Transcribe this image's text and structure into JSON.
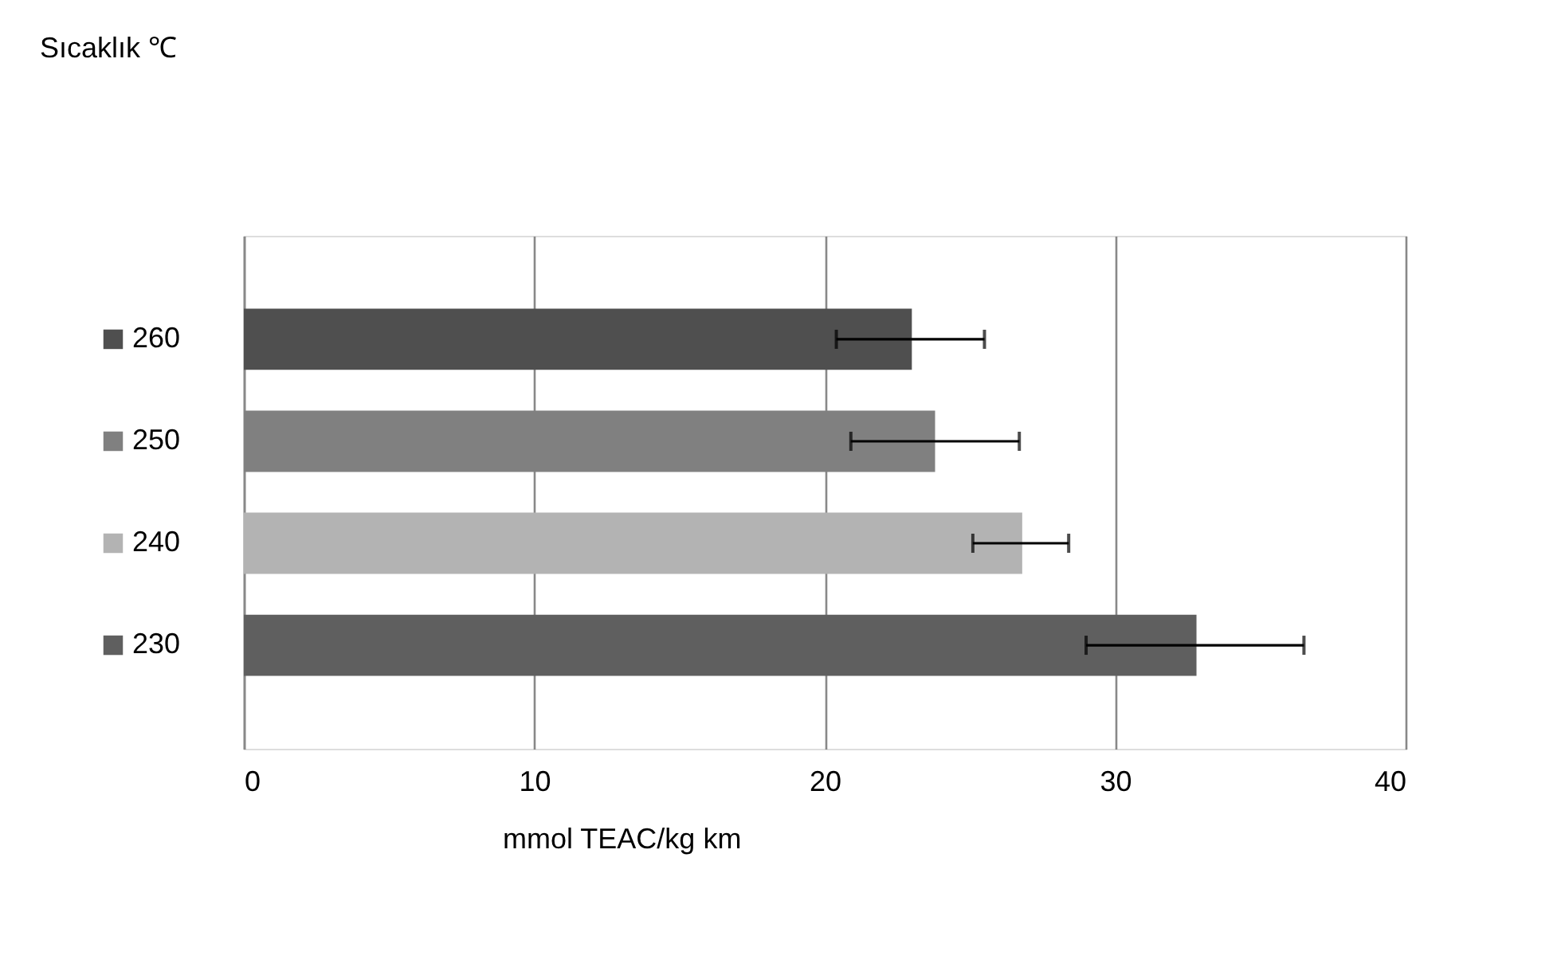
{
  "chart_data": {
    "type": "bar",
    "orientation": "horizontal",
    "annotations": [
      "Sıcaklık ℃"
    ],
    "xlabel": "mmol TEAC/kg km",
    "categories": [
      "260",
      "250",
      "240",
      "230"
    ],
    "values": [
      23.0,
      23.8,
      26.8,
      32.8
    ],
    "colors": [
      "#4f4f4f",
      "#808080",
      "#b3b3b3",
      "#5f5f5f"
    ],
    "errors": [
      [
        20.4,
        25.5
      ],
      [
        20.9,
        26.7
      ],
      [
        25.1,
        28.4
      ],
      [
        29.0,
        36.5
      ]
    ],
    "xlim": [
      0,
      40
    ],
    "xticks": [
      0,
      10,
      20,
      30,
      40
    ],
    "grid": "x"
  }
}
